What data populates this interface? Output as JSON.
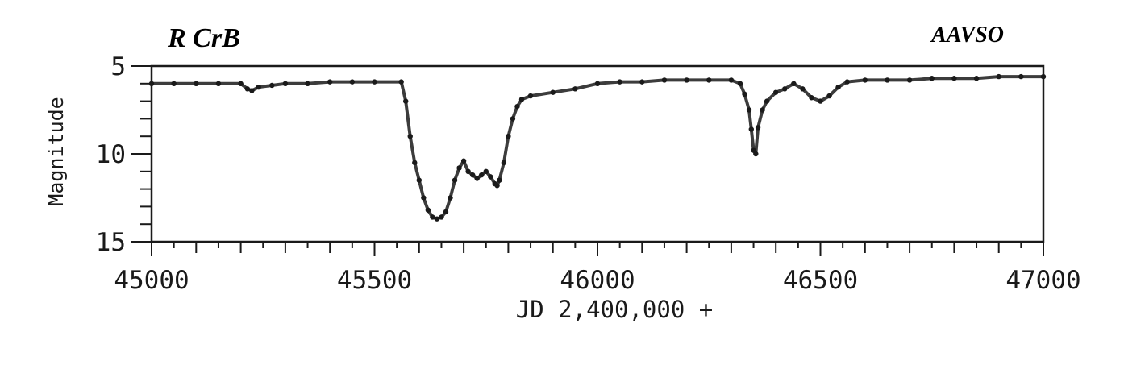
{
  "chart_data": {
    "type": "scatter",
    "title": "R CrB",
    "source_label": "AAVSO",
    "xlabel": "JD 2,400,000 +",
    "ylabel": "Magnitude",
    "xlim": [
      45000,
      47000
    ],
    "ylim": [
      5,
      15
    ],
    "y_inverted": true,
    "x_ticks": [
      45000,
      45500,
      46000,
      46500,
      47000
    ],
    "y_ticks": [
      5,
      10,
      15
    ],
    "x_tick_labels": [
      "45000",
      "45500",
      "46000",
      "46500",
      "47000"
    ],
    "y_tick_labels": [
      "5",
      "10",
      "15"
    ],
    "grid": false,
    "marker_color": "#1a1a1a",
    "series": [
      {
        "x": [
          45000,
          45050,
          45100,
          45150,
          45200,
          45215,
          45225,
          45240,
          45270,
          45300,
          45350,
          45400,
          45450,
          45500,
          45560,
          45570,
          45580,
          45590,
          45600,
          45610,
          45620,
          45630,
          45640,
          45650,
          45660,
          45670,
          45680,
          45690,
          45700,
          45710,
          45720,
          45730,
          45740,
          45750,
          45760,
          45770,
          45775,
          45780,
          45790,
          45800,
          45810,
          45820,
          45830,
          45850,
          45900,
          45950,
          46000,
          46050,
          46100,
          46150,
          46200,
          46250,
          46300,
          46320,
          46330,
          46340,
          46345,
          46350,
          46355,
          46360,
          46370,
          46380,
          46400,
          46420,
          46440,
          46460,
          46480,
          46500,
          46520,
          46540,
          46560,
          46600,
          46650,
          46700,
          46750,
          46800,
          46850,
          46900,
          46950,
          47000
        ],
        "y": [
          6.0,
          6.0,
          6.0,
          6.0,
          6.0,
          6.3,
          6.4,
          6.2,
          6.1,
          6.0,
          6.0,
          5.9,
          5.9,
          5.9,
          5.9,
          7.0,
          9.0,
          10.5,
          11.5,
          12.5,
          13.2,
          13.6,
          13.7,
          13.6,
          13.3,
          12.5,
          11.5,
          10.8,
          10.4,
          11.0,
          11.2,
          11.4,
          11.2,
          11.0,
          11.3,
          11.7,
          11.8,
          11.5,
          10.5,
          9.0,
          8.0,
          7.3,
          6.9,
          6.7,
          6.5,
          6.3,
          6.0,
          5.9,
          5.9,
          5.8,
          5.8,
          5.8,
          5.8,
          6.0,
          6.6,
          7.5,
          8.6,
          9.8,
          10.0,
          8.5,
          7.5,
          7.0,
          6.5,
          6.3,
          6.0,
          6.3,
          6.8,
          7.0,
          6.7,
          6.2,
          5.9,
          5.8,
          5.8,
          5.8,
          5.7,
          5.7,
          5.7,
          5.6,
          5.6,
          5.6
        ]
      }
    ]
  }
}
